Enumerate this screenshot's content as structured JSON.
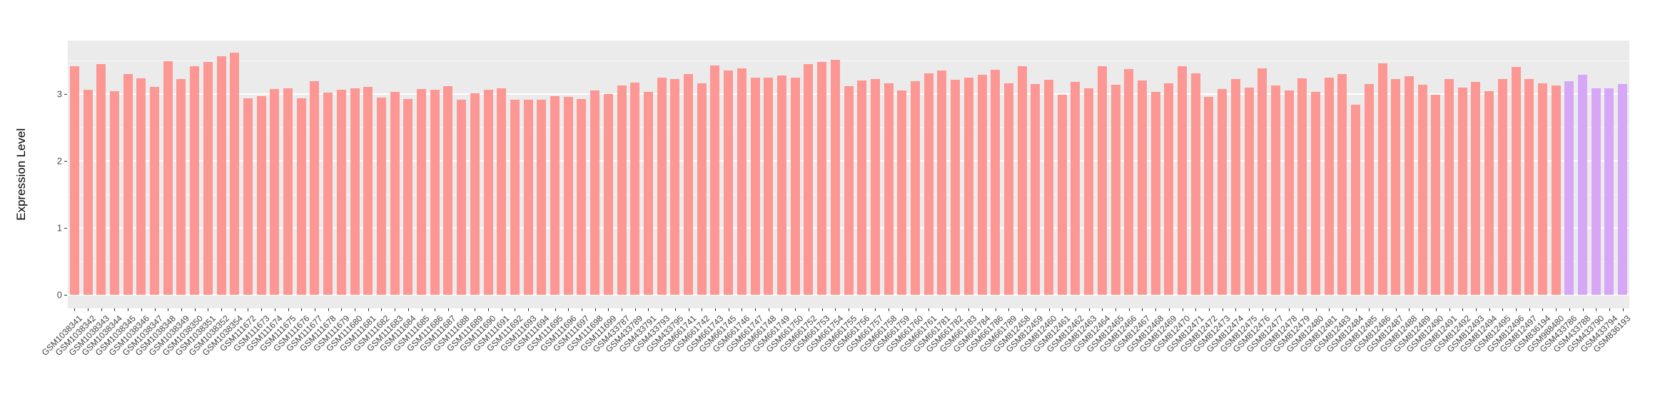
{
  "chart_data": {
    "type": "bar",
    "title": "",
    "xlabel": "",
    "ylabel": "Expression Level",
    "ylim": [
      0,
      3.8
    ],
    "yticks": [
      0,
      1,
      2,
      3
    ],
    "grid": "major-and-minor-horizontal-white-on-gray-panel",
    "legend": "none",
    "categories": [
      "GSM1038341",
      "GSM1038342",
      "GSM1038343",
      "GSM1038344",
      "GSM1038345",
      "GSM1038346",
      "GSM1038347",
      "GSM1038348",
      "GSM1038349",
      "GSM1038350",
      "GSM1038351",
      "GSM1038352",
      "GSM1038354",
      "GSM111672",
      "GSM111673",
      "GSM111674",
      "GSM111675",
      "GSM111676",
      "GSM111677",
      "GSM111678",
      "GSM111679",
      "GSM111680",
      "GSM111681",
      "GSM111682",
      "GSM111683",
      "GSM111684",
      "GSM111685",
      "GSM111686",
      "GSM111687",
      "GSM111688",
      "GSM111689",
      "GSM111690",
      "GSM111691",
      "GSM111692",
      "GSM111693",
      "GSM111694",
      "GSM111695",
      "GSM111696",
      "GSM111697",
      "GSM111698",
      "GSM111699",
      "GSM433787",
      "GSM433789",
      "GSM433791",
      "GSM433793",
      "GSM433795",
      "GSM661741",
      "GSM661742",
      "GSM661743",
      "GSM661745",
      "GSM661746",
      "GSM661747",
      "GSM661748",
      "GSM661749",
      "GSM661750",
      "GSM661752",
      "GSM661753",
      "GSM661754",
      "GSM661755",
      "GSM661756",
      "GSM661757",
      "GSM661758",
      "GSM661759",
      "GSM661760",
      "GSM661761",
      "GSM661781",
      "GSM661782",
      "GSM661783",
      "GSM661784",
      "GSM661786",
      "GSM661789",
      "GSM812458",
      "GSM812459",
      "GSM812460",
      "GSM812461",
      "GSM812462",
      "GSM812463",
      "GSM812464",
      "GSM812465",
      "GSM812466",
      "GSM812467",
      "GSM812468",
      "GSM812469",
      "GSM812470",
      "GSM812471",
      "GSM812472",
      "GSM812473",
      "GSM812474",
      "GSM812475",
      "GSM812476",
      "GSM812477",
      "GSM812478",
      "GSM812479",
      "GSM812480",
      "GSM812481",
      "GSM812483",
      "GSM812484",
      "GSM812485",
      "GSM812486",
      "GSM812487",
      "GSM812488",
      "GSM812489",
      "GSM812490",
      "GSM812491",
      "GSM812492",
      "GSM812493",
      "GSM812494",
      "GSM812495",
      "GSM812496",
      "GSM812497",
      "GSM836194",
      "GSM988480",
      "GSM433786",
      "GSM433788",
      "GSM433790",
      "GSM433794",
      "GSM836193"
    ],
    "values": [
      3.42,
      3.06,
      3.45,
      3.04,
      3.3,
      3.23,
      3.11,
      3.49,
      3.22,
      3.42,
      3.48,
      3.56,
      3.62,
      2.94,
      2.97,
      3.07,
      3.09,
      2.94,
      3.19,
      3.02,
      3.06,
      3.09,
      3.11,
      2.95,
      3.03,
      2.93,
      3.07,
      3.06,
      3.12,
      2.91,
      3.01,
      3.06,
      3.09,
      2.91,
      2.91,
      2.92,
      2.97,
      2.96,
      2.93,
      3.05,
      3.0,
      3.13,
      3.17,
      3.03,
      3.24,
      3.22,
      3.3,
      3.16,
      3.43,
      3.35,
      3.38,
      3.25,
      3.25,
      3.28,
      3.25,
      3.45,
      3.48,
      3.51,
      3.12,
      3.2,
      3.22,
      3.16,
      3.05,
      3.19,
      3.31,
      3.35,
      3.21,
      3.25,
      3.29,
      3.36,
      3.16,
      3.41,
      3.15,
      3.21,
      2.99,
      3.18,
      3.09,
      3.42,
      3.14,
      3.37,
      3.2,
      3.03,
      3.16,
      3.41,
      3.31,
      2.96,
      3.07,
      3.22,
      3.1,
      3.38,
      3.13,
      3.05,
      3.23,
      3.03,
      3.25,
      3.3,
      2.84,
      3.15,
      3.46,
      3.22,
      3.27,
      3.14,
      2.99,
      3.22,
      3.1,
      3.18,
      3.04,
      3.22,
      3.4,
      3.22,
      3.16,
      3.13,
      3.19,
      3.29,
      3.08,
      3.09,
      3.15
    ],
    "highlight_categories": [
      "GSM433786",
      "GSM433788",
      "GSM433790",
      "GSM433794",
      "GSM836193"
    ],
    "colors": {
      "bar_default": "#FC9794",
      "bar_highlight": "#D7A7F7",
      "panel_background": "#EBEBEB",
      "grid_major": "#FFFFFF",
      "axis_text": "#4D4D4D"
    }
  }
}
